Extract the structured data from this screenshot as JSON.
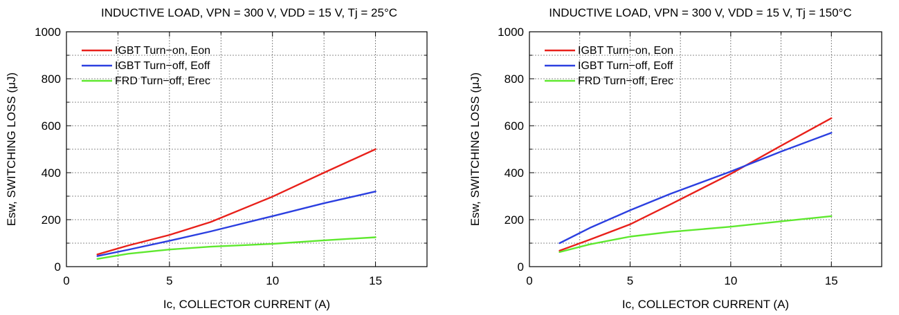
{
  "chart_data": [
    {
      "type": "line",
      "title": "INDUCTIVE LOAD, VPN = 300 V, VDD = 15 V, Tj = 25°C",
      "xlabel": "Ic, COLLECTOR CURRENT (A)",
      "ylabel": "Esw, SWITCHING LOSS (μJ)",
      "xlim": [
        0,
        17.5
      ],
      "ylim": [
        0,
        1000
      ],
      "xticks": [
        0,
        5,
        10,
        15
      ],
      "yticks": [
        0,
        200,
        400,
        600,
        800,
        1000
      ],
      "grid": true,
      "legend_position": "top-left",
      "series": [
        {
          "name": "IGBT Turn−on, Eon",
          "color": "#e8201a",
          "x": [
            1.5,
            3,
            5,
            7,
            10,
            12.5,
            15
          ],
          "y": [
            52,
            90,
            135,
            190,
            298,
            400,
            500
          ]
        },
        {
          "name": "IGBT Turn−off, Eoff",
          "color": "#2b3fe0",
          "x": [
            1.5,
            3,
            5,
            7,
            10,
            12.5,
            15
          ],
          "y": [
            45,
            72,
            110,
            150,
            215,
            270,
            320
          ]
        },
        {
          "name": "FRD Turn−off, Erec",
          "color": "#5ee82e",
          "x": [
            1.5,
            3,
            5,
            7,
            10,
            12.5,
            15
          ],
          "y": [
            33,
            55,
            73,
            85,
            97,
            112,
            125
          ]
        }
      ]
    },
    {
      "type": "line",
      "title": "INDUCTIVE LOAD, VPN = 300 V, VDD = 15 V, Tj = 150°C",
      "xlabel": "Ic, COLLECTOR CURRENT (A)",
      "ylabel": "Esw, SWITCHING LOSS (μJ)",
      "xlim": [
        0,
        17.5
      ],
      "ylim": [
        0,
        1000
      ],
      "xticks": [
        0,
        5,
        10,
        15
      ],
      "yticks": [
        0,
        200,
        400,
        600,
        800,
        1000
      ],
      "grid": true,
      "legend_position": "top-left",
      "series": [
        {
          "name": "IGBT Turn−on, Eon",
          "color": "#e8201a",
          "x": [
            1.5,
            3,
            5,
            7,
            10,
            12.5,
            15
          ],
          "y": [
            68,
            115,
            180,
            265,
            395,
            515,
            632
          ]
        },
        {
          "name": "IGBT Turn−off, Eoff",
          "color": "#2b3fe0",
          "x": [
            1.5,
            3,
            5,
            7,
            10,
            12.5,
            15
          ],
          "y": [
            100,
            165,
            240,
            310,
            405,
            490,
            570
          ]
        },
        {
          "name": "FRD Turn−off, Erec",
          "color": "#5ee82e",
          "x": [
            1.5,
            3,
            5,
            7,
            10,
            12.5,
            15
          ],
          "y": [
            62,
            95,
            128,
            148,
            170,
            193,
            215
          ]
        }
      ]
    }
  ]
}
